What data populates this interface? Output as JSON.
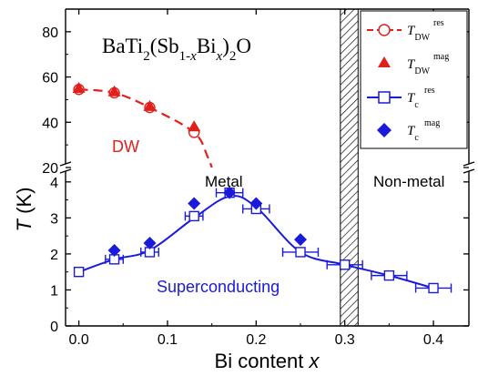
{
  "chart_data": {
    "type": "scatter",
    "title": "BaTi₂(Sb₁₋ₓBiₓ)₂O",
    "title_parts": {
      "base": "BaTi",
      "s1": "2",
      "p1": "(Sb",
      "s2": "1-",
      "s3": "x",
      "p2": "Bi",
      "s4": "x",
      "p3": ")",
      "s5": "2",
      "p4": "O"
    },
    "xlabel": "Bi content ",
    "xlabel_var": "x",
    "ylabel": "T",
    "ylabel_unit": " (K)",
    "xlim": [
      -0.015,
      0.44
    ],
    "x_ticks": [
      "0.0",
      "0.1",
      "0.2",
      "0.3",
      "0.4"
    ],
    "y_axis_broken": true,
    "y_ranges": {
      "lower": [
        0,
        4.4
      ],
      "upper": [
        20,
        90
      ]
    },
    "y_ticks_lower": [
      "0",
      "1",
      "2",
      "3",
      "4"
    ],
    "y_ticks_upper": [
      "20",
      "40",
      "60",
      "80"
    ],
    "regions": [
      {
        "label": "DW",
        "color": "#e0201b"
      },
      {
        "label": "Metal",
        "color": "#000000"
      },
      {
        "label": "Non-metal",
        "color": "#000000"
      },
      {
        "label": "Superconducting",
        "color": "#1a1adb"
      }
    ],
    "boundary_band": {
      "x": [
        0.295,
        0.315
      ],
      "style": "hatched"
    },
    "series": [
      {
        "name": "T_DW^res",
        "label_main": "T",
        "label_sub": "DW",
        "label_sup": "res",
        "panel": "upper",
        "marker": "open-circle",
        "color": "#e0201b",
        "line": "dashed",
        "x": [
          0.0,
          0.04,
          0.08,
          0.13
        ],
        "y": [
          54.5,
          53,
          46.5,
          35.5
        ]
      },
      {
        "name": "T_DW^mag",
        "label_main": "T",
        "label_sub": "DW",
        "label_sup": "mag",
        "panel": "upper",
        "marker": "filled-triangle",
        "color": "#e0201b",
        "line": "none",
        "x": [
          0.0,
          0.04,
          0.08,
          0.13
        ],
        "y": [
          55,
          53.5,
          47,
          38
        ]
      },
      {
        "name": "T_c^res",
        "label_main": "T",
        "label_sub": "c",
        "label_sup": "res",
        "panel": "lower",
        "marker": "open-square",
        "color": "#1a1adb",
        "line": "solid",
        "x": [
          0.0,
          0.04,
          0.08,
          0.13,
          0.17,
          0.2,
          0.25,
          0.3,
          0.35,
          0.4
        ],
        "y": [
          1.5,
          1.85,
          2.05,
          3.05,
          3.7,
          3.25,
          2.05,
          1.7,
          1.4,
          1.05
        ],
        "xerr": [
          0,
          0.01,
          0.01,
          0.01,
          0.015,
          0.015,
          0.02,
          0.02,
          0.02,
          0.02
        ]
      },
      {
        "name": "T_c^mag",
        "label_main": "T",
        "label_sub": "c",
        "label_sup": "mag",
        "panel": "lower",
        "marker": "filled-diamond",
        "color": "#1a1adb",
        "line": "none",
        "x": [
          0.04,
          0.08,
          0.13,
          0.17,
          0.2,
          0.25
        ],
        "y": [
          2.1,
          2.3,
          3.4,
          3.7,
          3.4,
          2.4
        ]
      }
    ],
    "dw_curve": {
      "x": [
        0.0,
        0.04,
        0.08,
        0.13,
        0.145,
        0.15
      ],
      "y": [
        54.5,
        53,
        46.5,
        35.5,
        25,
        20
      ]
    },
    "sc_curve": {
      "x": [
        0.0,
        0.04,
        0.08,
        0.13,
        0.17,
        0.2,
        0.25,
        0.3,
        0.35,
        0.4
      ],
      "y": [
        1.5,
        1.85,
        2.1,
        3.0,
        3.6,
        3.3,
        2.05,
        1.7,
        1.4,
        1.05
      ]
    },
    "legend_position": "top-right",
    "grid": false
  }
}
